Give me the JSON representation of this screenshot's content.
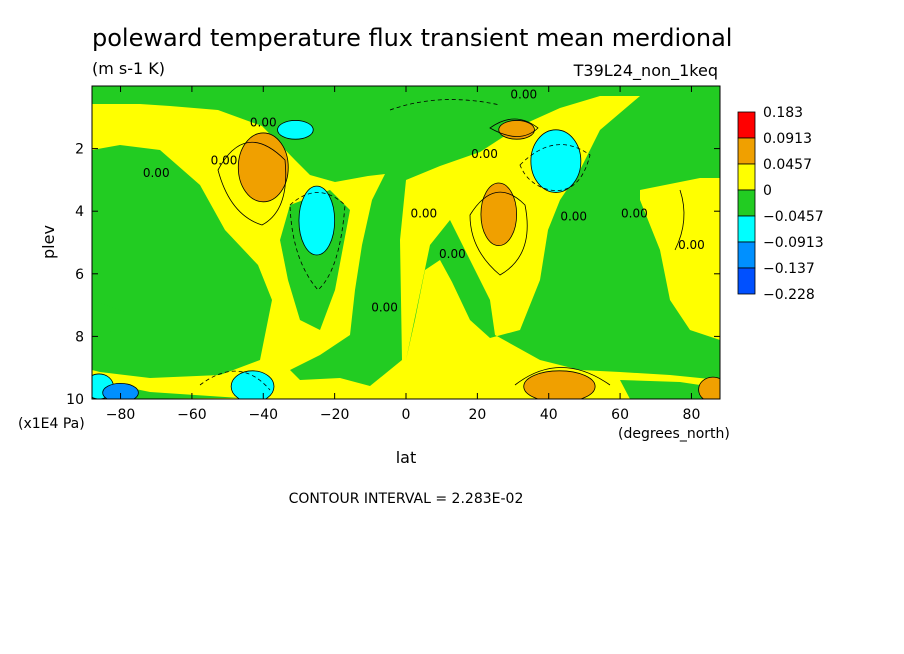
{
  "chart_data": {
    "type": "heatmap",
    "title": "poleward temperature flux transient mean merdional",
    "units": "(m s-1 K)",
    "run_label": "T39L24_non_1keq",
    "xlabel": "lat",
    "xunits": "(degrees_north)",
    "ylabel": "plev",
    "yunits": "(x1E4 Pa)",
    "xlim": [
      -88,
      88
    ],
    "ylim": [
      10,
      0
    ],
    "x_ticks": [
      -80,
      -60,
      -40,
      -20,
      0,
      20,
      40,
      60,
      80
    ],
    "y_ticks": [
      2,
      4,
      6,
      8,
      10
    ],
    "contour_interval": "CONTOUR INTERVAL = 2.283E-02",
    "colorbar": {
      "levels": [
        "0.183",
        "0.0913",
        "0.0457",
        "0",
        "−0.0457",
        "−0.0913",
        "−0.137",
        "−0.228"
      ],
      "colors": [
        "#ff0000",
        "#f0a000",
        "#ffff00",
        "#22cc22",
        "#00ffff",
        "#0090ff",
        "#0050ff"
      ]
    },
    "contour_labels": [
      {
        "text": "0.00",
        "lat": 33,
        "plev": 0.4
      },
      {
        "text": "0.00",
        "lat": -40,
        "plev": 1.3
      },
      {
        "text": "0.00",
        "lat": 22,
        "plev": 2.3
      },
      {
        "text": "0.00",
        "lat": -70,
        "plev": 2.9
      },
      {
        "text": "0.00",
        "lat": -51,
        "plev": 2.5
      },
      {
        "text": "0.00",
        "lat": 5,
        "plev": 4.2
      },
      {
        "text": "0.00",
        "lat": 47,
        "plev": 4.3
      },
      {
        "text": "0.00",
        "lat": 64,
        "plev": 4.2
      },
      {
        "text": "0.00",
        "lat": 13,
        "plev": 5.5
      },
      {
        "text": "0.00",
        "lat": 80,
        "plev": 5.2
      },
      {
        "text": "0.00",
        "lat": -6,
        "plev": 7.2
      }
    ],
    "bands": [
      {
        "level": "0.183",
        "areas": [
          {
            "lat": -40,
            "plev": 2.5,
            "rx": 3,
            "ry": 0.3
          }
        ]
      },
      {
        "level": "0.0913",
        "areas": [
          {
            "lat": -40,
            "plev": 2.6,
            "rx": 7,
            "ry": 1.1
          },
          {
            "lat": 31,
            "plev": 1.4,
            "rx": 5,
            "ry": 0.3
          },
          {
            "lat": 26,
            "plev": 4.1,
            "rx": 5,
            "ry": 1.0
          },
          {
            "lat": 43,
            "plev": 9.6,
            "rx": 10,
            "ry": 0.5
          },
          {
            "lat": 86,
            "plev": 9.7,
            "rx": 4,
            "ry": 0.4
          }
        ]
      },
      {
        "level": "-0.0457",
        "areas": [
          {
            "lat": -31,
            "plev": 1.4,
            "rx": 5,
            "ry": 0.3
          },
          {
            "lat": -25,
            "plev": 4.3,
            "rx": 5,
            "ry": 1.1
          },
          {
            "lat": 42,
            "plev": 2.4,
            "rx": 7,
            "ry": 1.0
          },
          {
            "lat": -43,
            "plev": 9.6,
            "rx": 6,
            "ry": 0.5
          },
          {
            "lat": -86,
            "plev": 9.6,
            "rx": 4,
            "ry": 0.4
          }
        ]
      },
      {
        "level": "-0.0913",
        "areas": [
          {
            "lat": -80,
            "plev": 9.8,
            "rx": 5,
            "ry": 0.3
          }
        ]
      }
    ]
  }
}
